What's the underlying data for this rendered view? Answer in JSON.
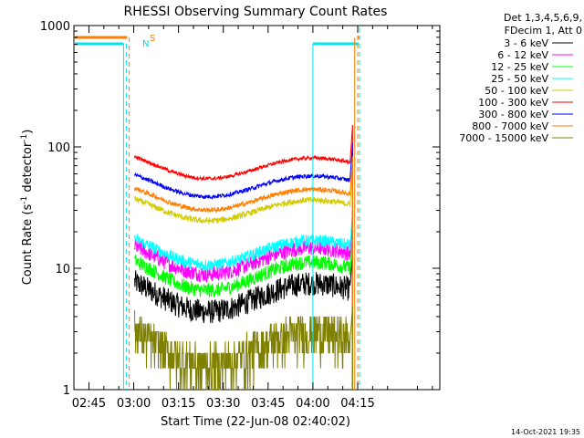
{
  "chart_data": {
    "type": "line",
    "title": "RHESSI Observing Summary Count Rates",
    "xlabel": "Start Time (22-Jun-08 02:40:02)",
    "ylabel_main": "Count Rate (s",
    "ylabel_sup1": "-1",
    "ylabel_mid": " detector",
    "ylabel_sup2": "-1",
    "ylabel_end": ")",
    "y_scale": "log",
    "ylim": [
      1,
      1000
    ],
    "xlim_minutes": [
      -20.03,
      102.5
    ],
    "x_ticks": [
      {
        "m": -15,
        "label": "02:45"
      },
      {
        "m": 0,
        "label": "03:00"
      },
      {
        "m": 15,
        "label": "03:15"
      },
      {
        "m": 30,
        "label": "03:30"
      },
      {
        "m": 45,
        "label": "03:45"
      },
      {
        "m": 60,
        "label": "04:00"
      },
      {
        "m": 75,
        "label": "04:15"
      }
    ],
    "y_ticks": [
      {
        "v": 1,
        "label": "1"
      },
      {
        "v": 10,
        "label": "10"
      },
      {
        "v": 100,
        "label": "100"
      },
      {
        "v": 1000,
        "label": "1000"
      }
    ],
    "legend_header": [
      "Det 1,3,4,5,6,9,",
      "FDecim 1, Att 0"
    ],
    "series": [
      {
        "name": "3 - 6 keV",
        "color": "#000000",
        "base": 6,
        "amp": 0.3,
        "noise": 0.2
      },
      {
        "name": "6 - 12 keV",
        "color": "#ff00ff",
        "base": 12,
        "amp": 0.28,
        "noise": 0.13
      },
      {
        "name": "12 - 25 keV",
        "color": "#00ff00",
        "base": 9,
        "amp": 0.3,
        "noise": 0.12
      },
      {
        "name": "25 - 50 keV",
        "color": "#00ffff",
        "base": 14,
        "amp": 0.26,
        "noise": 0.1
      },
      {
        "name": "50 - 100 keV",
        "color": "#d4cc00",
        "base": 31,
        "amp": 0.22,
        "noise": 0.05
      },
      {
        "name": "100 - 300 keV",
        "color": "#ff0000",
        "base": 69,
        "amp": 0.22,
        "noise": 0.03
      },
      {
        "name": "300 - 800 keV",
        "color": "#0000ff",
        "base": 49,
        "amp": 0.22,
        "noise": 0.035
      },
      {
        "name": "800 - 7000 keV",
        "color": "#ff7f00",
        "base": 38,
        "amp": 0.22,
        "noise": 0.04
      },
      {
        "name": "7000 - 15000 keV",
        "color": "#808000",
        "base": 2.2,
        "amp": 0.35,
        "noise": 0.5
      }
    ],
    "annotations": {
      "saa_label": "S",
      "night_label": "N",
      "footer": "14-Oct-2021 19:35"
    }
  }
}
